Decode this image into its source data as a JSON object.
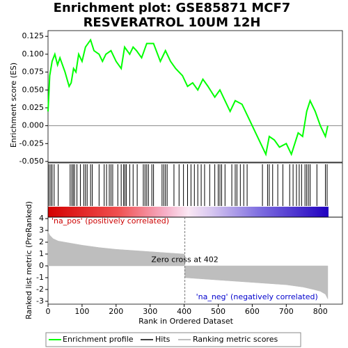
{
  "chart_data": [
    {
      "type": "line",
      "title": [
        "Enrichment plot: GSE85871 MCF7",
        "RESVERATROL 10UM 12H"
      ],
      "ylabel": "Enrichment score (ES)",
      "xlim": [
        0,
        865
      ],
      "ylim": [
        -0.051,
        0.133
      ],
      "yticks": [
        {
          "value": -0.05,
          "label": "-0.050"
        },
        {
          "value": -0.025,
          "label": "-0.025"
        },
        {
          "value": 0,
          "label": "0.000"
        },
        {
          "value": 0.025,
          "label": "0.025"
        },
        {
          "value": 0.05,
          "label": "0.050"
        },
        {
          "value": 0.075,
          "label": "0.075"
        },
        {
          "value": 0.1,
          "label": "0.100"
        },
        {
          "value": 0.125,
          "label": "0.125"
        }
      ],
      "series": [
        {
          "name": "Enrichment profile",
          "color": "#00ff00",
          "x": [
            0,
            5,
            12,
            20,
            28,
            35,
            50,
            62,
            68,
            75,
            82,
            90,
            100,
            110,
            125,
            135,
            150,
            160,
            170,
            185,
            200,
            215,
            225,
            240,
            250,
            260,
            275,
            290,
            310,
            330,
            345,
            360,
            375,
            395,
            410,
            425,
            440,
            455,
            470,
            490,
            505,
            520,
            535,
            550,
            570,
            590,
            610,
            630,
            640,
            650,
            665,
            680,
            700,
            715,
            725,
            735,
            748,
            760,
            770,
            785,
            800,
            815,
            822
          ],
          "values": [
            0.02,
            0.07,
            0.09,
            0.1,
            0.085,
            0.095,
            0.075,
            0.055,
            0.06,
            0.08,
            0.075,
            0.1,
            0.09,
            0.11,
            0.12,
            0.105,
            0.1,
            0.09,
            0.1,
            0.105,
            0.09,
            0.08,
            0.11,
            0.1,
            0.11,
            0.105,
            0.095,
            0.115,
            0.115,
            0.09,
            0.105,
            0.09,
            0.08,
            0.07,
            0.055,
            0.06,
            0.05,
            0.065,
            0.055,
            0.04,
            0.05,
            0.035,
            0.02,
            0.035,
            0.03,
            0.01,
            -0.01,
            -0.03,
            -0.04,
            -0.015,
            -0.02,
            -0.03,
            -0.025,
            -0.04,
            -0.025,
            -0.01,
            -0.015,
            0.02,
            0.035,
            0.02,
            0.0,
            -0.015,
            0.0
          ]
        }
      ]
    },
    {
      "type": "hits",
      "xlim": [
        0,
        865
      ],
      "series": [
        {
          "name": "Hits",
          "color": "#000000",
          "x": [
            3,
            8,
            12,
            18,
            30,
            65,
            70,
            74,
            78,
            85,
            95,
            105,
            110,
            115,
            125,
            130,
            150,
            165,
            172,
            180,
            185,
            190,
            205,
            215,
            222,
            226,
            230,
            240,
            250,
            262,
            280,
            285,
            290,
            295,
            305,
            310,
            335,
            340,
            345,
            350,
            370,
            385,
            398,
            410,
            420,
            430,
            440,
            450,
            460,
            475,
            490,
            500,
            505,
            510,
            520,
            540,
            550,
            555,
            565,
            575,
            585,
            630,
            645,
            650,
            660,
            675,
            690,
            710,
            720,
            730,
            738,
            745,
            755,
            760,
            765,
            770,
            790,
            815,
            820
          ]
        }
      ]
    },
    {
      "type": "area",
      "xlabel": "Rank in Ordered Dataset",
      "ylabel": "Ranked list metric (PreRanked)",
      "xlim": [
        0,
        865
      ],
      "xticks": [
        0,
        100,
        200,
        300,
        400,
        500,
        600,
        700,
        800
      ],
      "ylim": [
        -3.24,
        4.12
      ],
      "yticks": [
        -3,
        -2,
        -1,
        0,
        1,
        2,
        3,
        4
      ],
      "zero_cross": 402,
      "zero_cross_label": "Zero cross at 402",
      "pos_label": "'na_pos' (positively correlated)",
      "neg_label": "'na_neg' (negatively correlated)",
      "series": [
        {
          "name": "Ranking metric scores",
          "color": "#bebebe",
          "x": [
            0,
            5,
            15,
            30,
            60,
            100,
            150,
            200,
            250,
            300,
            350,
            401,
            402,
            450,
            500,
            550,
            600,
            650,
            700,
            750,
            780,
            800,
            815,
            822
          ],
          "values": [
            2.9,
            2.6,
            2.3,
            2.1,
            1.95,
            1.75,
            1.55,
            1.4,
            1.3,
            1.2,
            1.1,
            1.0,
            -1.0,
            -1.1,
            -1.2,
            -1.3,
            -1.4,
            -1.5,
            -1.6,
            -1.8,
            -2.0,
            -2.15,
            -2.4,
            -2.8
          ]
        }
      ]
    }
  ]
}
